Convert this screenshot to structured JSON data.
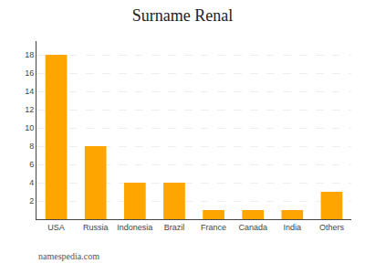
{
  "chart_data": {
    "type": "bar",
    "title": "Surname Renal",
    "categories": [
      "USA",
      "Russia",
      "Indonesia",
      "Brazil",
      "France",
      "Canada",
      "India",
      "Others"
    ],
    "values": [
      18,
      8,
      4,
      4,
      1,
      1,
      1,
      3
    ],
    "color": "#FFA500",
    "ylim": [
      0,
      19.5
    ],
    "yticks": [
      2,
      4,
      6,
      8,
      10,
      12,
      14,
      16,
      18
    ],
    "grid": true,
    "annotations": [
      "namespedia.com"
    ]
  }
}
